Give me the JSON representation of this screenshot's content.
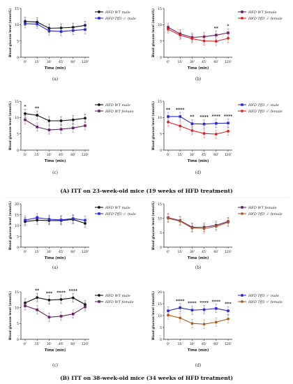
{
  "figure": {
    "caption_a": "(A) ITT on 23-week-old mice (19 weeks of HFD treatment)",
    "caption_b": "(B) ITT on 38-week-old mice (34 weeks of HFD treatment)"
  },
  "colors": {
    "black": "#111111",
    "blue": "#2a2ad8",
    "purple": "#6a1f6a",
    "red": "#e02020",
    "brown": "#b05a1e"
  },
  "chart_data": [
    {
      "type": "line",
      "panel": "A-a",
      "ylabel": "Blood glucose level (mmol/L)",
      "xlabel": "Time (min)",
      "x": [
        "0'",
        "15'",
        "30'",
        "45'",
        "60'",
        "120'"
      ],
      "ylim": [
        0,
        15
      ],
      "yticks": [
        "0",
        "5",
        "10",
        "15"
      ],
      "sublabel": "(a)",
      "sig": [],
      "series": [
        {
          "name": "HFD WT male",
          "color": "black",
          "marker": "circle",
          "values": [
            11.0,
            10.8,
            8.9,
            9.0,
            9.2,
            9.8
          ]
        },
        {
          "name": "HFD Tff3 -/- male",
          "color": "blue",
          "marker": "square",
          "values": [
            10.3,
            10.2,
            8.1,
            7.9,
            8.2,
            8.5
          ]
        }
      ]
    },
    {
      "type": "line",
      "panel": "A-b",
      "ylabel": "Blood glucose level (mmol/L)",
      "xlabel": "Time (min)",
      "x": [
        "0'",
        "15'",
        "30'",
        "45'",
        "60'",
        "120'"
      ],
      "ylim": [
        0,
        15
      ],
      "yticks": [
        "0",
        "5",
        "10",
        "15"
      ],
      "sublabel": "(b)",
      "sig": [
        {
          "i": 4,
          "t": "**"
        },
        {
          "i": 5,
          "t": "*"
        }
      ],
      "series": [
        {
          "name": "HFD WT female",
          "color": "purple",
          "marker": "square",
          "values": [
            9.2,
            7.2,
            6.1,
            6.3,
            6.8,
            7.5
          ]
        },
        {
          "name": "HFD Tff3 -/- female",
          "color": "red",
          "marker": "circle",
          "values": [
            8.6,
            6.8,
            5.7,
            5.0,
            4.9,
            5.8
          ]
        }
      ]
    },
    {
      "type": "line",
      "panel": "A-c",
      "ylabel": "Blood glucose level (mmol/L)",
      "xlabel": "Time (min)",
      "x": [
        "0'",
        "15'",
        "30'",
        "45'",
        "60'",
        "120'"
      ],
      "ylim": [
        0,
        15
      ],
      "yticks": [
        "0",
        "5",
        "10",
        "15"
      ],
      "sublabel": "(c)",
      "sig": [
        {
          "i": 0,
          "t": "*"
        },
        {
          "i": 1,
          "t": "**"
        }
      ],
      "series": [
        {
          "name": "HFD WT male",
          "color": "black",
          "marker": "circle",
          "values": [
            11.2,
            10.7,
            9.0,
            9.0,
            9.3,
            9.8
          ]
        },
        {
          "name": "HFD WT female",
          "color": "purple",
          "marker": "square",
          "values": [
            9.3,
            7.1,
            6.2,
            6.4,
            6.8,
            7.5
          ]
        }
      ]
    },
    {
      "type": "line",
      "panel": "A-d",
      "ylabel": "Blood glucose level (mmol/L)",
      "xlabel": "Time (min)",
      "x": [
        "0'",
        "15'",
        "30'",
        "45'",
        "60'",
        "120'"
      ],
      "ylim": [
        0,
        15
      ],
      "yticks": [
        "0",
        "5",
        "10",
        "15"
      ],
      "sublabel": "(d)",
      "sig": [
        {
          "i": 0,
          "t": "**"
        },
        {
          "i": 1,
          "t": "****"
        },
        {
          "i": 2,
          "t": "**"
        },
        {
          "i": 3,
          "t": "****"
        },
        {
          "i": 4,
          "t": "****"
        },
        {
          "i": 5,
          "t": "****"
        }
      ],
      "series": [
        {
          "name": "HFD Tff3 -/- male",
          "color": "blue",
          "marker": "square",
          "values": [
            10.3,
            10.3,
            8.1,
            8.0,
            8.2,
            8.3
          ]
        },
        {
          "name": "HFD Tff3 -/- female",
          "color": "red",
          "marker": "circle",
          "values": [
            8.6,
            7.4,
            6.0,
            5.1,
            4.9,
            5.8
          ]
        }
      ]
    },
    {
      "type": "line",
      "panel": "B-a",
      "ylabel": "Blood glucose level (mmol/L)",
      "xlabel": "Time (min)",
      "x": [
        "0'",
        "15'",
        "30'",
        "45'",
        "60'",
        "120'"
      ],
      "ylim": [
        0,
        20
      ],
      "yticks": [
        "0",
        "5",
        "10",
        "15",
        "20"
      ],
      "sublabel": "(a)",
      "sig": [],
      "series": [
        {
          "name": "HFD WT male",
          "color": "black",
          "marker": "circle",
          "values": [
            11.8,
            12.5,
            12.3,
            12.3,
            12.8,
            11.0
          ]
        },
        {
          "name": "HFD Tff3 -/- male",
          "color": "blue",
          "marker": "square",
          "values": [
            12.5,
            13.6,
            12.9,
            12.6,
            13.2,
            12.4
          ]
        }
      ]
    },
    {
      "type": "line",
      "panel": "B-b",
      "ylabel": "Blood glucose level (mmol/L)",
      "xlabel": "Time (min)",
      "x": [
        "0'",
        "15'",
        "30'",
        "45'",
        "60'",
        "120'"
      ],
      "ylim": [
        0,
        15
      ],
      "yticks": [
        "0",
        "5",
        "10",
        "15"
      ],
      "sublabel": "(b)",
      "sig": [],
      "series": [
        {
          "name": "HFD WT female",
          "color": "purple",
          "marker": "square",
          "values": [
            10.2,
            9.2,
            6.9,
            6.9,
            7.6,
            8.9
          ]
        },
        {
          "name": "HFD Tff3 -/- female",
          "color": "brown",
          "marker": "circle",
          "values": [
            10.0,
            9.0,
            6.6,
            6.4,
            7.2,
            8.6
          ]
        }
      ]
    },
    {
      "type": "line",
      "panel": "B-c",
      "ylabel": "Blood glucose level (mmol/L)",
      "xlabel": "Time (min)",
      "x": [
        "0'",
        "15'",
        "30'",
        "45'",
        "60'",
        "120'"
      ],
      "ylim": [
        0,
        15
      ],
      "yticks": [
        "0",
        "5",
        "10",
        "15"
      ],
      "sublabel": "(c)",
      "sig": [
        {
          "i": 1,
          "t": "**"
        },
        {
          "i": 2,
          "t": "***"
        },
        {
          "i": 3,
          "t": "****"
        },
        {
          "i": 4,
          "t": "****"
        }
      ],
      "series": [
        {
          "name": "HFD WT male",
          "color": "black",
          "marker": "circle",
          "values": [
            11.5,
            13.2,
            12.4,
            12.6,
            13.1,
            11.0
          ]
        },
        {
          "name": "HFD WT female",
          "color": "purple",
          "marker": "square",
          "values": [
            10.6,
            9.3,
            7.0,
            7.3,
            8.0,
            10.3
          ]
        }
      ]
    },
    {
      "type": "line",
      "panel": "B-d",
      "ylabel": "Blood glucose level (mmol/L)",
      "xlabel": "Time (min)",
      "x": [
        "0'",
        "15'",
        "30'",
        "45'",
        "60'",
        "120'"
      ],
      "ylim": [
        0,
        20
      ],
      "yticks": [
        "0",
        "5",
        "10",
        "15",
        "20"
      ],
      "sublabel": "(d)",
      "sig": [
        {
          "i": 1,
          "t": "****"
        },
        {
          "i": 2,
          "t": "****"
        },
        {
          "i": 3,
          "t": "****"
        },
        {
          "i": 4,
          "t": "****"
        },
        {
          "i": 5,
          "t": "***"
        }
      ],
      "series": [
        {
          "name": "HFD Tff3 -/- male",
          "color": "blue",
          "marker": "square",
          "values": [
            12.0,
            13.3,
            12.3,
            12.5,
            13.0,
            12.0
          ]
        },
        {
          "name": "HFD Tff3 -/- female",
          "color": "brown",
          "marker": "circle",
          "values": [
            10.2,
            9.0,
            6.7,
            6.4,
            7.2,
            8.6
          ]
        }
      ]
    }
  ]
}
